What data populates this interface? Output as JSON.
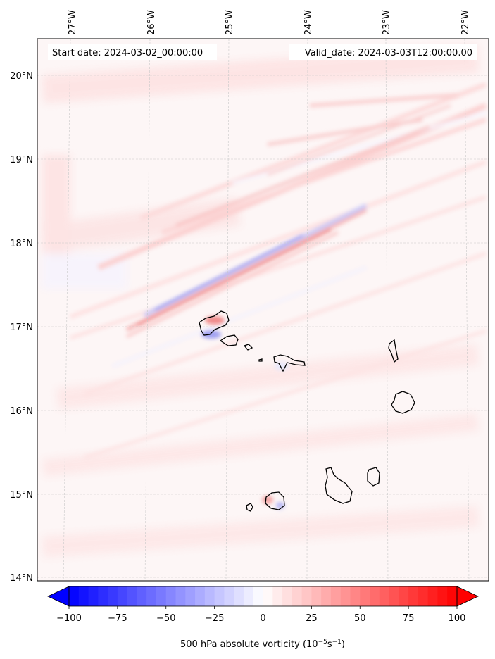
{
  "map": {
    "start_date_label": "Start date: 2024-03-02_00:00:00",
    "valid_date_label": "Valid_date: 2024-03-03T12:00:00.00",
    "lon_ticks": [
      "27°W",
      "26°W",
      "25°W",
      "24°W",
      "23°W",
      "22°W"
    ],
    "lat_ticks": [
      "20°N",
      "19°N",
      "18°N",
      "17°N",
      "16°N",
      "15°N",
      "14°N"
    ],
    "colors": {
      "background": "#fdf6f6",
      "positive": "#ff0000",
      "negative": "#0000ff",
      "coastline": "#000000"
    }
  },
  "colorbar": {
    "tick_labels": [
      "−100",
      "−75",
      "−50",
      "−25",
      "0",
      "25",
      "50",
      "75",
      "100"
    ],
    "tick_values": [
      -100,
      -75,
      -50,
      -25,
      0,
      25,
      50,
      75,
      100
    ],
    "min": -100,
    "max": 100,
    "step": 5,
    "label_main": "500 hPa absolute vorticity (10",
    "label_exp1": "−5",
    "label_mid": "s",
    "label_exp2": "−1",
    "label_end": ")"
  }
}
